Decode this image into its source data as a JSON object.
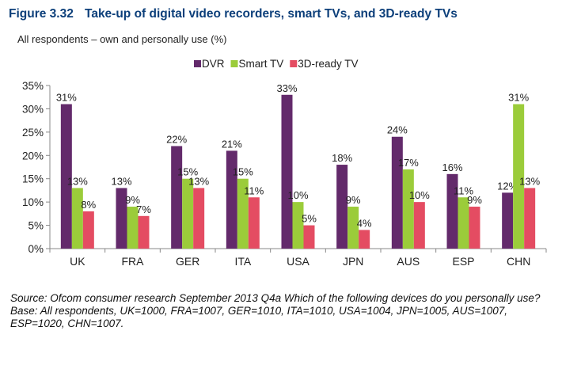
{
  "figure": {
    "number": "Figure 3.32",
    "title": "Take-up of digital video recorders, smart TVs, and 3D-ready TVs",
    "subtitle": "All respondents – own and personally use (%)"
  },
  "chart_data": {
    "type": "bar",
    "title": "Take-up of digital video recorders, smart TVs, and 3D-ready TVs",
    "ylabel": "All respondents – own and personally use (%)",
    "xlabel": "",
    "categories": [
      "UK",
      "FRA",
      "GER",
      "ITA",
      "USA",
      "JPN",
      "AUS",
      "ESP",
      "CHN"
    ],
    "series": [
      {
        "name": "DVR",
        "color": "#632a6b",
        "values": [
          31,
          13,
          22,
          21,
          33,
          18,
          24,
          16,
          12
        ]
      },
      {
        "name": "Smart TV",
        "color": "#9bcc3a",
        "values": [
          13,
          9,
          15,
          15,
          10,
          9,
          17,
          11,
          31
        ]
      },
      {
        "name": "3D-ready TV",
        "color": "#e44c62",
        "values": [
          8,
          7,
          13,
          11,
          5,
          4,
          10,
          9,
          13
        ]
      }
    ],
    "ylim": [
      0,
      35
    ],
    "yticks": [
      0,
      5,
      10,
      15,
      20,
      25,
      30,
      35
    ],
    "tick_suffix": "%",
    "value_suffix": "%",
    "grid": false,
    "legend_position": "top-center"
  },
  "source": {
    "line1": "Source: Ofcom consumer research September 2013 Q4a Which of the following devices do you personally use?",
    "line2": "Base: All respondents, UK=1000, FRA=1007, GER=1010, ITA=1010, USA=1004, JPN=1005, AUS=1007, ESP=1020, CHN=1007."
  }
}
